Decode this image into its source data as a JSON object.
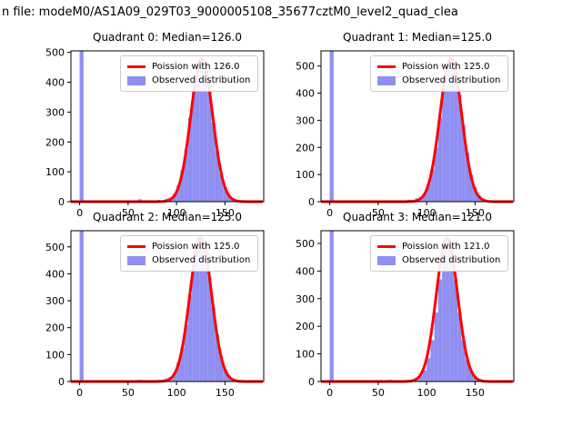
{
  "figure": {
    "suptitle": "n file: modeM0/AS1A09_029T03_9000005108_35677cztM0_level2_quad_clea",
    "colors": {
      "hist": "#8f8ff2",
      "curve": "#ff0000",
      "axis": "#000000"
    }
  },
  "chart_data": [
    {
      "type": "bar",
      "subtype": "histogram-with-fit-line",
      "title": "Quadrant 0: Median=126.0",
      "median": 126.0,
      "legend": [
        "Poission with 126.0",
        "Observed distribution"
      ],
      "xlabel": "",
      "ylabel": "",
      "xlim": [
        -9,
        190
      ],
      "ylim": [
        0,
        505
      ],
      "xticks": [
        0,
        50,
        100,
        150
      ],
      "yticks": [
        0,
        100,
        200,
        300,
        400,
        500
      ],
      "bin_start": 0,
      "bin_width": 4,
      "counts": [
        600,
        0,
        0,
        0,
        0,
        0,
        0,
        0,
        0,
        0,
        0,
        0,
        0,
        0,
        0,
        8,
        0,
        3,
        5,
        2,
        6,
        4,
        10,
        14,
        26,
        55,
        105,
        175,
        280,
        370,
        455,
        480,
        440,
        370,
        265,
        170,
        95,
        50,
        22,
        9,
        4,
        1,
        0,
        0,
        0,
        0
      ],
      "curve": {
        "mu": 126.0,
        "sigma": 11.2,
        "peak": 480
      }
    },
    {
      "type": "bar",
      "subtype": "histogram-with-fit-line",
      "title": "Quadrant 1: Median=125.0",
      "median": 125.0,
      "legend": [
        "Poission with 125.0",
        "Observed distribution"
      ],
      "xlabel": "",
      "ylabel": "",
      "xlim": [
        -9,
        190
      ],
      "ylim": [
        0,
        556
      ],
      "xticks": [
        0,
        50,
        100,
        150
      ],
      "yticks": [
        0,
        100,
        200,
        300,
        400,
        500
      ],
      "bin_start": 0,
      "bin_width": 4,
      "counts": [
        600,
        0,
        0,
        0,
        0,
        0,
        0,
        0,
        0,
        0,
        0,
        0,
        0,
        0,
        0,
        5,
        0,
        4,
        2,
        0,
        7,
        5,
        12,
        18,
        30,
        65,
        120,
        200,
        310,
        420,
        500,
        530,
        480,
        395,
        280,
        180,
        100,
        52,
        24,
        10,
        4,
        1,
        0,
        0,
        0,
        0
      ],
      "curve": {
        "mu": 125.0,
        "sigma": 11.2,
        "peak": 530
      }
    },
    {
      "type": "bar",
      "subtype": "histogram-with-fit-line",
      "title": "Quadrant 2: Median=125.0",
      "median": 125.0,
      "legend": [
        "Poission with 125.0",
        "Observed distribution"
      ],
      "xlabel": "",
      "ylabel": "",
      "xlim": [
        -9,
        190
      ],
      "ylim": [
        0,
        560
      ],
      "xticks": [
        0,
        50,
        100,
        150
      ],
      "yticks": [
        0,
        100,
        200,
        300,
        400,
        500
      ],
      "bin_start": 0,
      "bin_width": 4,
      "counts": [
        600,
        0,
        0,
        0,
        0,
        0,
        0,
        0,
        0,
        0,
        0,
        0,
        0,
        0,
        0,
        6,
        0,
        3,
        4,
        2,
        5,
        6,
        11,
        17,
        32,
        70,
        125,
        210,
        320,
        430,
        510,
        535,
        485,
        390,
        275,
        175,
        95,
        48,
        20,
        8,
        3,
        1,
        0,
        0,
        0,
        0
      ],
      "curve": {
        "mu": 125.0,
        "sigma": 11.2,
        "peak": 535
      }
    },
    {
      "type": "bar",
      "subtype": "histogram-with-fit-line",
      "title": "Quadrant 3: Median=121.0",
      "median": 121.0,
      "legend": [
        "Poission with 121.0",
        "Observed distribution"
      ],
      "xlabel": "",
      "ylabel": "",
      "xlim": [
        -9,
        190
      ],
      "ylim": [
        0,
        546
      ],
      "xticks": [
        0,
        50,
        100,
        150
      ],
      "yticks": [
        0,
        100,
        200,
        300,
        400,
        500
      ],
      "bin_start": 0,
      "bin_width": 4,
      "counts": [
        600,
        0,
        0,
        0,
        0,
        0,
        0,
        0,
        0,
        0,
        0,
        0,
        0,
        0,
        0,
        6,
        2,
        3,
        2,
        4,
        6,
        8,
        14,
        22,
        40,
        85,
        150,
        250,
        370,
        480,
        520,
        470,
        370,
        250,
        150,
        80,
        40,
        16,
        6,
        2,
        1,
        0,
        0,
        0,
        0,
        0
      ],
      "curve": {
        "mu": 121.0,
        "sigma": 11.0,
        "peak": 520
      }
    }
  ]
}
